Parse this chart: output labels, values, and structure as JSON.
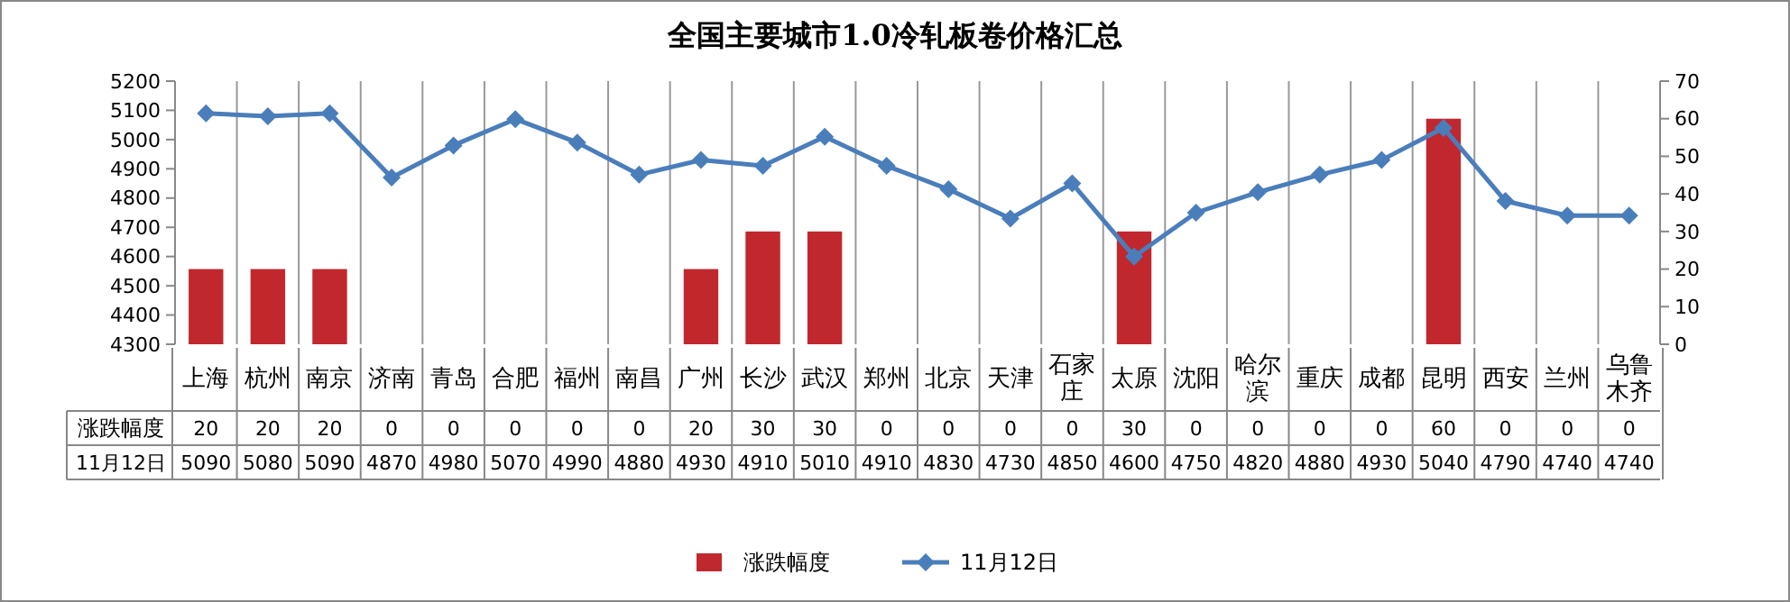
{
  "chart_data": {
    "type": "bar",
    "title": "全国主要城市1.0冷轧板卷价格汇总",
    "categories": [
      "上海",
      "杭州",
      "南京",
      "济南",
      "青岛",
      "合肥",
      "福州",
      "南昌",
      "广州",
      "长沙",
      "武汉",
      "郑州",
      "北京",
      "天津",
      "石家庄",
      "太原",
      "沈阳",
      "哈尔滨",
      "重庆",
      "成都",
      "昆明",
      "西安",
      "兰州",
      "乌鲁木齐"
    ],
    "series": [
      {
        "name": "涨跌幅度",
        "axis": "y2",
        "color": "#c0282d",
        "values": [
          20,
          20,
          20,
          0,
          0,
          0,
          0,
          0,
          20,
          30,
          30,
          0,
          0,
          0,
          0,
          30,
          0,
          0,
          0,
          0,
          60,
          0,
          0,
          0
        ]
      },
      {
        "name": "11月12日",
        "type": "line",
        "color": "#4a7ebb",
        "marker": "diamond",
        "values": [
          5090,
          5080,
          5090,
          4870,
          4980,
          5070,
          4990,
          4880,
          4930,
          4910,
          5010,
          4910,
          4830,
          4730,
          4850,
          4600,
          4750,
          4820,
          4880,
          4930,
          5040,
          4790,
          4740,
          4740
        ]
      }
    ],
    "ylim": [
      4300,
      5200
    ],
    "yticks": [
      4300,
      4400,
      4500,
      4600,
      4700,
      4800,
      4900,
      5000,
      5100,
      5200
    ],
    "y2lim": [
      0,
      70
    ],
    "y2ticks": [
      0,
      10,
      20,
      30,
      40,
      50,
      60,
      70
    ],
    "data_labels": true,
    "grid": "x",
    "legend": "bottom"
  }
}
